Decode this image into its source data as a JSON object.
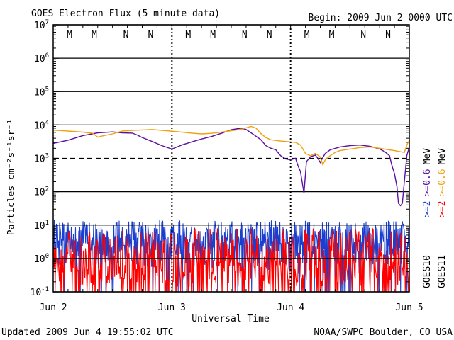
{
  "chart_data": {
    "type": "line",
    "title": "GOES Electron Flux (5 minute data)",
    "begin_label": "Begin: 2009 Jun 2 0000 UTC",
    "ylabel": "Particles cm⁻²s⁻¹sr⁻¹",
    "xlabel": "Universal Time",
    "yscale": "log",
    "ylim": [
      0.1,
      10000000
    ],
    "y_ticks": [
      {
        "value": 0.1,
        "base": "10",
        "exp": "-1"
      },
      {
        "value": 1,
        "base": "10",
        "exp": "0"
      },
      {
        "value": 10,
        "base": "10",
        "exp": "1"
      },
      {
        "value": 100,
        "base": "10",
        "exp": "2"
      },
      {
        "value": 1000,
        "base": "10",
        "exp": "3"
      },
      {
        "value": 10000,
        "base": "10",
        "exp": "4"
      },
      {
        "value": 100000,
        "base": "10",
        "exp": "5"
      },
      {
        "value": 1000000,
        "base": "10",
        "exp": "6"
      },
      {
        "value": 10000000,
        "base": "10",
        "exp": "7"
      }
    ],
    "xlim": [
      0,
      72
    ],
    "x_unit": "hours since 2009 Jun 2 0000 UTC",
    "x_ticks": [
      {
        "hour": 0,
        "label": "Jun 2"
      },
      {
        "hour": 24,
        "label": "Jun 3"
      },
      {
        "hour": 48,
        "label": "Jun 4"
      },
      {
        "hour": 72,
        "label": "Jun 5"
      }
    ],
    "threshold_line": 1000,
    "markers": [
      {
        "hour": 3.3,
        "label": "M",
        "color": "#1a3fd0"
      },
      {
        "hour": 8.3,
        "label": "M",
        "color": "#e01010"
      },
      {
        "hour": 14.7,
        "label": "N",
        "color": "#1a3fd0"
      },
      {
        "hour": 19.7,
        "label": "N",
        "color": "#e01010"
      },
      {
        "hour": 27.3,
        "label": "M",
        "color": "#1a3fd0"
      },
      {
        "hour": 32.3,
        "label": "M",
        "color": "#e01010"
      },
      {
        "hour": 38.7,
        "label": "N",
        "color": "#1a3fd0"
      },
      {
        "hour": 43.7,
        "label": "N",
        "color": "#e01010"
      },
      {
        "hour": 51.3,
        "label": "M",
        "color": "#1a3fd0"
      },
      {
        "hour": 56.3,
        "label": "M",
        "color": "#e01010"
      },
      {
        "hour": 62.7,
        "label": "N",
        "color": "#1a3fd0"
      },
      {
        "hour": 67.7,
        "label": "N",
        "color": "#e01010"
      }
    ],
    "series": [
      {
        "name": "GOES10 >=0.6 MeV",
        "color": "#5a10a0",
        "hours": [
          0,
          3,
          6,
          9,
          12,
          14,
          16,
          17,
          18,
          20,
          22,
          24,
          26,
          28,
          30,
          32,
          34,
          36,
          37,
          38,
          39,
          40,
          41,
          42,
          43,
          44,
          45,
          46,
          47,
          48,
          49,
          49.5,
          50,
          50.7,
          51.2,
          52,
          53,
          53.5,
          54,
          54.5,
          55,
          56,
          58,
          60,
          62,
          64,
          65,
          66,
          67,
          68,
          68.5,
          69,
          69.5,
          69.8,
          70.2,
          70.6,
          71,
          71.5,
          72
        ],
        "values": [
          2800,
          3500,
          4800,
          5800,
          6200,
          5800,
          5700,
          5000,
          4200,
          3200,
          2400,
          1900,
          2500,
          3100,
          3800,
          4500,
          5600,
          7200,
          7600,
          8000,
          7300,
          5800,
          4600,
          3600,
          2400,
          2000,
          1800,
          1200,
          950,
          900,
          1000,
          600,
          400,
          90,
          800,
          1100,
          1250,
          1000,
          750,
          1050,
          1400,
          1800,
          2200,
          2400,
          2500,
          2300,
          2100,
          1900,
          1600,
          1200,
          600,
          350,
          140,
          45,
          38,
          45,
          200,
          1200,
          2200
        ]
      },
      {
        "name": "GOES11 >=0.6 MeV",
        "color": "#f0a010",
        "hours": [
          0,
          2,
          4,
          6,
          8,
          9,
          10,
          12,
          14,
          16,
          18,
          20,
          22,
          24,
          26,
          28,
          30,
          32,
          34,
          36,
          38,
          40,
          41,
          42,
          43,
          44,
          46,
          48,
          49,
          50,
          51,
          52,
          53,
          54,
          54.5,
          55,
          56,
          57,
          58,
          60,
          62,
          64,
          66,
          68,
          69,
          70,
          71,
          71.5,
          72
        ],
        "values": [
          7000,
          6700,
          6400,
          6100,
          5600,
          4300,
          4700,
          5400,
          6600,
          6900,
          7100,
          7300,
          6900,
          6500,
          6100,
          5700,
          5400,
          5600,
          6100,
          6700,
          7400,
          9000,
          8000,
          5500,
          4200,
          3600,
          3300,
          3100,
          3000,
          2500,
          1400,
          1200,
          1400,
          1100,
          650,
          900,
          1200,
          1500,
          1700,
          1900,
          2100,
          2200,
          2000,
          1800,
          1700,
          1600,
          1500,
          2500,
          3500
        ]
      }
    ]
  },
  "right_legend": {
    "goes10_label": "GOES10",
    "goes11_label": "GOES11",
    "g10_2": ">=2",
    "g10_06": ">=0.6",
    "g11_2": ">=2",
    "g11_06": ">=0.6",
    "mev_a": "MeV",
    "mev_b": "MeV",
    "color_blue": "#1a3fd0",
    "color_red": "#ff0000",
    "color_purple": "#5a10a0",
    "color_orange": "#f0a010"
  },
  "noise_series": [
    {
      "name": "GOES10 >=2 MeV",
      "color": "#1a3fd0",
      "level_min": 0.1,
      "level_max": 14
    },
    {
      "name": "GOES11 >=2 MeV",
      "color": "#ff0000",
      "level_min": 0.1,
      "level_max": 8
    }
  ],
  "footer": {
    "updated": "Updated 2009 Jun  4 19:55:02 UTC",
    "source": "NOAA/SWPC Boulder, CO USA"
  }
}
